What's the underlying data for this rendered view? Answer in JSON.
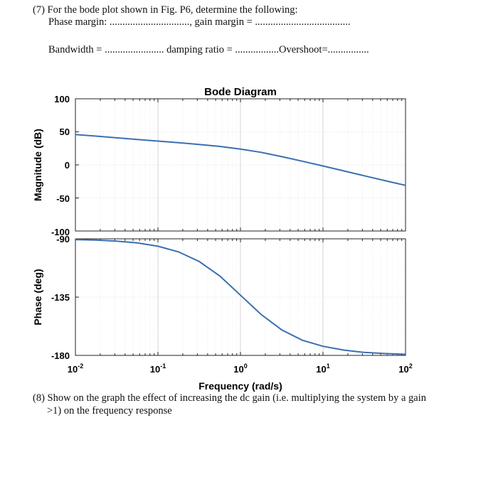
{
  "question7": {
    "title": "(7) For the bode plot shown in Fig. P6, determine the following:",
    "line1": "Phase margin: ..............................., gain margin = .....................................",
    "line2": "Bandwidth = ....................... damping ratio = .................Overshoot=................"
  },
  "question8": {
    "line1": "(8) Show on the graph the effect of increasing the dc gain (i.e. multiplying the system by a gain",
    "line2": ">1) on the frequency response"
  },
  "chart_data": [
    {
      "type": "line",
      "title": "Bode Diagram",
      "xlabel": "Frequency (rad/s)",
      "ylabel": "Magnitude (dB)",
      "x_scale": "log",
      "xlim": [
        0.01,
        100
      ],
      "ylim": [
        -100,
        100
      ],
      "y_ticks": [
        "100",
        "50",
        "0",
        "-50",
        "-100"
      ],
      "x_ticks": [
        {
          "base": "10",
          "exp": "-2"
        },
        {
          "base": "10",
          "exp": "-1"
        },
        {
          "base": "10",
          "exp": "0"
        },
        {
          "base": "10",
          "exp": "1"
        },
        {
          "base": "10",
          "exp": "2"
        }
      ],
      "grid": true,
      "color": "#3a6fb0",
      "series": [
        {
          "x": [
            0.01,
            0.0178,
            0.0316,
            0.0562,
            0.1,
            0.178,
            0.316,
            0.562,
            1,
            1.78,
            3.16,
            5.62,
            10,
            17.8,
            31.6,
            56.2,
            100
          ],
          "y": [
            46,
            43.5,
            41,
            38.5,
            36,
            33.5,
            30.9,
            28,
            24,
            19,
            12.5,
            5.6,
            -1.6,
            -9,
            -16.4,
            -23.8,
            -31
          ]
        }
      ]
    },
    {
      "type": "line",
      "ylabel": "Phase (deg)",
      "x_scale": "log",
      "xlim": [
        0.01,
        100
      ],
      "ylim": [
        -180,
        -90
      ],
      "y_ticks": [
        "-90",
        "-135",
        "-180"
      ],
      "grid": true,
      "color": "#3a6fb0",
      "series": [
        {
          "x": [
            0.01,
            0.0178,
            0.0316,
            0.0562,
            0.1,
            0.178,
            0.316,
            0.562,
            1,
            1.78,
            3.16,
            5.62,
            10,
            17.8,
            31.6,
            56.2,
            100
          ],
          "y": [
            -90.6,
            -91,
            -91.8,
            -93.2,
            -95.7,
            -100.1,
            -107.5,
            -118.7,
            -133.5,
            -148.4,
            -160.3,
            -168.3,
            -173,
            -175.9,
            -177.7,
            -178.6,
            -179.2
          ]
        }
      ]
    }
  ]
}
